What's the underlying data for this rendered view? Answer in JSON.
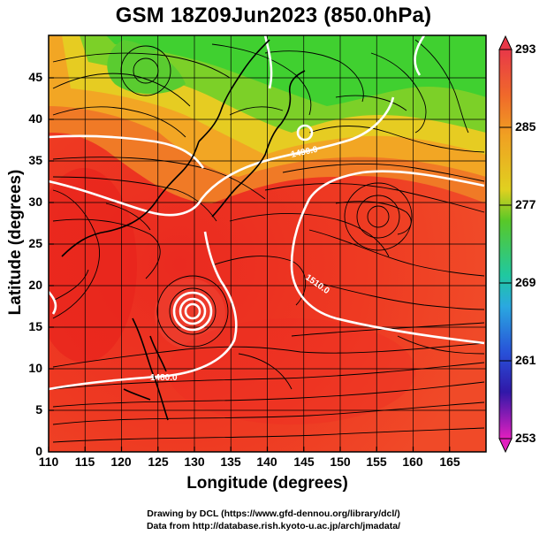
{
  "title": "GSM 18Z09Jun2023 (850.0hPa)",
  "xlabel": "Longitude (degrees)",
  "ylabel": "Latitude  (degrees)",
  "x_ticks": [
    "110",
    "115",
    "120",
    "125",
    "130",
    "135",
    "140",
    "145",
    "150",
    "155",
    "160",
    "165"
  ],
  "y_ticks": [
    "0",
    "5",
    "10",
    "15",
    "20",
    "25",
    "30",
    "35",
    "40",
    "45"
  ],
  "colorbar": {
    "labels": [
      "293",
      "285",
      "277",
      "269",
      "261",
      "253"
    ],
    "colors": [
      "#e8304a",
      "#f09a26",
      "#3cc83c",
      "#2aa8e0",
      "#2030c0",
      "#e21fbf"
    ]
  },
  "contour_labels": [
    "1490.0",
    "1510.0",
    "1480.0"
  ],
  "credits": {
    "line1": "Drawing by DCL (https://www.gfd-dennou.org/library/dcl/)",
    "line2": "Data from http://database.rish.kyoto-u.ac.jp/arch/jmadata/"
  },
  "chart_data": {
    "type": "heatmap",
    "variable": "temperature with streamlines and geopotential height contours",
    "xlim": [
      110,
      170
    ],
    "ylim": [
      0,
      50
    ],
    "color_range": [
      253,
      293
    ],
    "grid": true
  }
}
